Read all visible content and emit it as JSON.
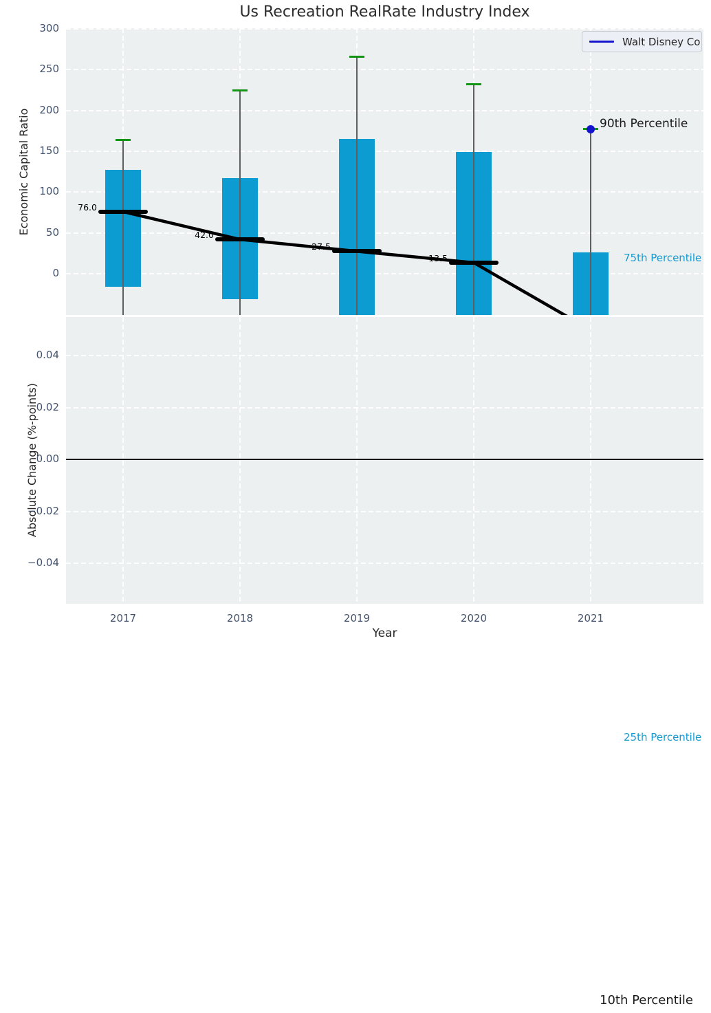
{
  "title": "Us Recreation RealRate Industry Index",
  "legend": {
    "label": "Walt Disney Co"
  },
  "annotations": {
    "p90": "90th Percentile",
    "p75": "75th Percentile",
    "p25": "25th Percentile",
    "p10": "10th Percentile"
  },
  "colors": {
    "plot_bg": "#ecf0f1",
    "bar": "#0d9cd1",
    "whisker": "#5f5f5f",
    "cap_green": "#149414",
    "median_black": "#000000",
    "trend_black": "#000000",
    "disney_blue": "#1414cc",
    "annotation_cyan": "#1699cd",
    "tick_text": "#44536b",
    "zero_line": "#000000"
  },
  "chart_data": {
    "type": "bar",
    "title": "Us Recreation RealRate Industry Index",
    "xlabel": "Year",
    "categories": [
      "2017",
      "2018",
      "2019",
      "2020",
      "2021"
    ],
    "legend_entries": [
      "Walt Disney Co"
    ],
    "legend_position": "upper right",
    "grid": true,
    "top_panel": {
      "ylabel": "Economic Capital Ratio",
      "ylim": [
        -50.5,
        300
      ],
      "ytick_labels": [
        "300",
        "250",
        "200",
        "150",
        "100",
        "50",
        "0"
      ],
      "ytick_values": [
        300,
        250,
        200,
        150,
        100,
        50,
        0
      ],
      "series": [
        {
          "name": "bar_top_75th_percentile",
          "values": [
            127,
            117,
            165,
            149,
            26
          ]
        },
        {
          "name": "bar_bottom_25th_percentile_clipped",
          "values": [
            -16,
            -31,
            -60,
            -60,
            -60
          ]
        },
        {
          "name": "median",
          "values": [
            76,
            42,
            27.5,
            13.5,
            null
          ],
          "labels": [
            "76.0",
            "42.0",
            "27.5",
            "13.5",
            null
          ]
        },
        {
          "name": "whisker_top_90th_percentile",
          "values": [
            164,
            225,
            266,
            232,
            177
          ]
        }
      ],
      "trend_line_values": [
        76,
        42,
        27.5,
        13.5,
        -69
      ],
      "disney_point": {
        "year": "2021",
        "value": 177
      }
    },
    "bottom_panel": {
      "ylabel": "Absolute Change (%-points)",
      "ylim": [
        -0.0555,
        0.0555
      ],
      "ytick_labels": [
        "0.04",
        "0.02",
        "0.00",
        "−0.02",
        "−0.04"
      ],
      "ytick_values": [
        0.04,
        0.02,
        0.0,
        -0.02,
        -0.04
      ],
      "zero_line": true,
      "series": []
    }
  }
}
